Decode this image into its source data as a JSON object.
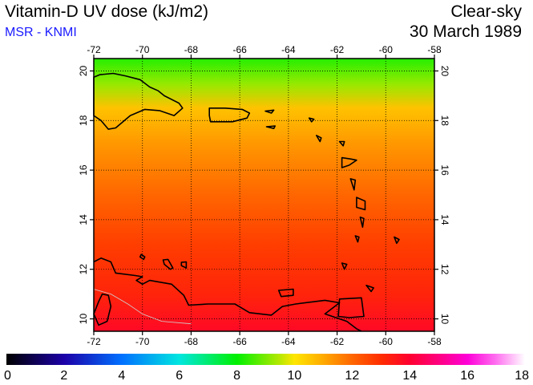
{
  "header": {
    "title": "Vitamin-D UV dose (kJ/m2)",
    "subtitle": "MSR - KNMI",
    "condition": "Clear-sky",
    "date": "30 March 1989"
  },
  "map": {
    "lon_range": [
      -72,
      -58
    ],
    "lat_range": [
      9.5,
      20.5
    ],
    "lon_ticks": [
      -72,
      -70,
      -68,
      -66,
      -64,
      -62,
      -60,
      -58
    ],
    "lat_ticks": [
      10,
      12,
      14,
      16,
      18,
      20
    ],
    "lon_tick_labels": [
      "-72",
      "-70",
      "-68",
      "-66",
      "-64",
      "-62",
      "-60",
      "-58"
    ],
    "lat_tick_labels": [
      "10",
      "12",
      "14",
      "16",
      "18",
      "20"
    ],
    "grid": "dotted",
    "field_gradient": [
      {
        "lat": 20.5,
        "value": 8.3
      },
      {
        "lat": 19.5,
        "value": 9.2
      },
      {
        "lat": 18.5,
        "value": 10.6
      },
      {
        "lat": 17.0,
        "value": 11.3
      },
      {
        "lat": 15.0,
        "value": 12.0
      },
      {
        "lat": 13.0,
        "value": 12.7
      },
      {
        "lat": 11.0,
        "value": 13.2
      },
      {
        "lat": 9.5,
        "value": 13.8
      }
    ]
  },
  "colorbar": {
    "min": 0,
    "max": 18,
    "tick_values": [
      0,
      2,
      4,
      6,
      8,
      10,
      12,
      14,
      16,
      18
    ],
    "tick_labels": [
      "0",
      "2",
      "4",
      "6",
      "8",
      "10",
      "12",
      "14",
      "16",
      "18"
    ],
    "stops": [
      {
        "value": 0,
        "color": "#000000"
      },
      {
        "value": 2,
        "color": "#1c00a8"
      },
      {
        "value": 4,
        "color": "#0070ff"
      },
      {
        "value": 6,
        "color": "#00e6e0"
      },
      {
        "value": 8,
        "color": "#00f000"
      },
      {
        "value": 9.5,
        "color": "#b8e800"
      },
      {
        "value": 10,
        "color": "#ffe600"
      },
      {
        "value": 11,
        "color": "#ffaa00"
      },
      {
        "value": 12,
        "color": "#ff6600"
      },
      {
        "value": 13,
        "color": "#ff2d00"
      },
      {
        "value": 14,
        "color": "#ff0030"
      },
      {
        "value": 15,
        "color": "#ff0080"
      },
      {
        "value": 16,
        "color": "#ff00d8"
      },
      {
        "value": 17,
        "color": "#ff70f0"
      },
      {
        "value": 18,
        "color": "#ffffff"
      }
    ]
  }
}
